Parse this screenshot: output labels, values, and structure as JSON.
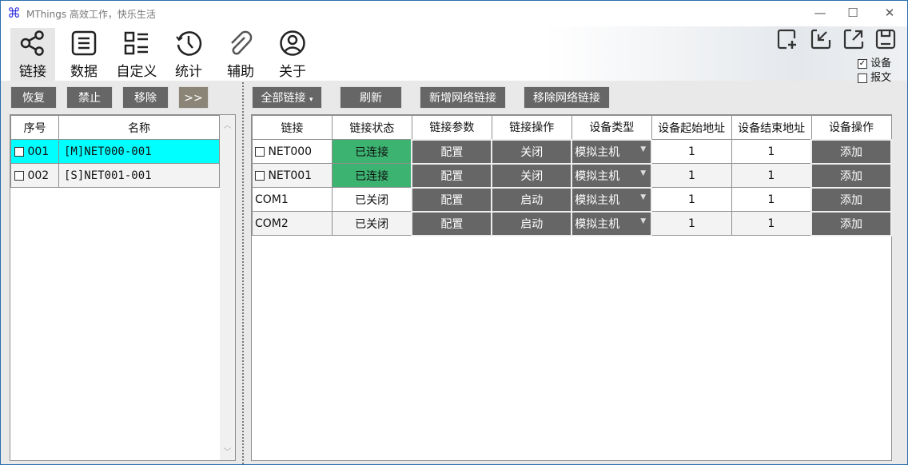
{
  "window": {
    "title": "MThings  高效工作，快乐生活",
    "minimize": "—",
    "maximize": "☐",
    "close": "✕"
  },
  "toolbar": {
    "items": [
      {
        "label": "链接",
        "icon": "share-icon",
        "selected": true
      },
      {
        "label": "数据",
        "icon": "list-box-icon"
      },
      {
        "label": "自定义",
        "icon": "grid-list-icon"
      },
      {
        "label": "统计",
        "icon": "history-clock-icon"
      },
      {
        "label": "辅助",
        "icon": "paperclip-icon"
      },
      {
        "label": "关于",
        "icon": "user-circle-icon"
      }
    ],
    "right_icons": [
      "new-window-icon",
      "import-icon",
      "export-icon",
      "save-icon"
    ],
    "options": [
      {
        "label": "设备",
        "checked": true
      },
      {
        "label": "报文",
        "checked": false
      }
    ]
  },
  "left": {
    "buttons": [
      "恢复",
      "禁止",
      "移除",
      ">>"
    ],
    "more_color": "#8a8577",
    "columns": [
      "序号",
      "名称"
    ],
    "rows": [
      {
        "index": "001",
        "name": "[M]NET000-001",
        "selected": true
      },
      {
        "index": "002",
        "name": "[S]NET001-001"
      }
    ]
  },
  "right": {
    "buttons": [
      "全部链接",
      "刷新",
      "新增网络链接",
      "移除网络链接"
    ],
    "columns": [
      "链接",
      "链接状态",
      "链接参数",
      "链接操作",
      "设备类型",
      "设备起始地址",
      "设备结束地址",
      "设备操作"
    ],
    "rows": [
      {
        "link": "NET000",
        "checkbox": true,
        "status": "已连接",
        "connected": true,
        "param": "配置",
        "op": "关闭",
        "type": "模拟主机",
        "start": "1",
        "end": "1",
        "action": "添加"
      },
      {
        "link": "NET001",
        "checkbox": true,
        "status": "已连接",
        "connected": true,
        "param": "配置",
        "op": "关闭",
        "type": "模拟主机",
        "start": "1",
        "end": "1",
        "action": "添加"
      },
      {
        "link": "COM1",
        "checkbox": false,
        "status": "已关闭",
        "connected": false,
        "param": "配置",
        "op": "启动",
        "type": "模拟主机",
        "start": "1",
        "end": "1",
        "action": "添加"
      },
      {
        "link": "COM2",
        "checkbox": false,
        "status": "已关闭",
        "connected": false,
        "param": "配置",
        "op": "启动",
        "type": "模拟主机",
        "start": "1",
        "end": "1",
        "action": "添加"
      }
    ],
    "connected_color": "#3cb371"
  }
}
